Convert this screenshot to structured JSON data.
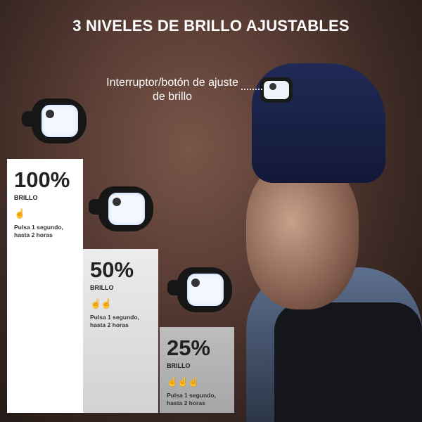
{
  "title": "3 NIVELES DE BRILLO AJUSTABLES",
  "callout": "Interruptor/botón de ajuste de brillo",
  "levels": [
    {
      "percent": "100%",
      "label": "BRILLO",
      "taps": "☝",
      "tap_count": 1,
      "desc": "Pulsa 1 segundo, hasta 2 horas"
    },
    {
      "percent": "50%",
      "label": "BRILLO",
      "taps": "☝☝",
      "tap_count": 2,
      "desc": "Pulsa 1 segundo, hasta 2 horas"
    },
    {
      "percent": "25%",
      "label": "BRILLO",
      "taps": "☝☝☝",
      "tap_count": 3,
      "desc": "Pulsa 1 segundo, hasta 2 horas"
    }
  ],
  "colors": {
    "hat": "#1c2450",
    "panel_100": "#ffffff",
    "panel_50": "#dcdcdc",
    "panel_25": "#b0b0b0"
  }
}
